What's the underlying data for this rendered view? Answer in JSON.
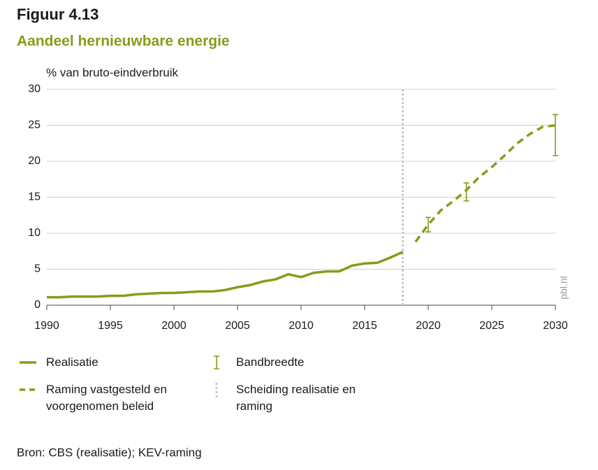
{
  "chart_data": {
    "type": "line",
    "title": "Figuur 4.13",
    "subtitle": "Aandeel hernieuwbare energie",
    "y_label": "% van  bruto-eindverbruik",
    "source": "Bron: CBS (realisatie); KEV-raming",
    "watermark": "pbl.nl",
    "x": [
      1990,
      1991,
      1992,
      1993,
      1994,
      1995,
      1996,
      1997,
      1998,
      1999,
      2000,
      2001,
      2002,
      2003,
      2004,
      2005,
      2006,
      2007,
      2008,
      2009,
      2010,
      2011,
      2012,
      2013,
      2014,
      2015,
      2016,
      2017,
      2018,
      2019,
      2020,
      2021,
      2022,
      2023,
      2024,
      2025,
      2026,
      2027,
      2028,
      2029,
      2030
    ],
    "series": [
      {
        "name": "Realisatie",
        "color": "#8a9a1b",
        "dashed": false,
        "values": [
          1.1,
          1.1,
          1.2,
          1.2,
          1.2,
          1.3,
          1.3,
          1.5,
          1.6,
          1.7,
          1.7,
          1.8,
          1.9,
          1.9,
          2.1,
          2.5,
          2.8,
          3.3,
          3.6,
          4.3,
          3.9,
          4.5,
          4.7,
          4.7,
          5.5,
          5.8,
          5.9,
          6.6,
          7.4,
          null,
          null,
          null,
          null,
          null,
          null,
          null,
          null,
          null,
          null,
          null,
          null
        ]
      },
      {
        "name": "Raming vastgesteld en voorgenomen beleid",
        "color": "#8a9a1b",
        "dashed": true,
        "values": [
          null,
          null,
          null,
          null,
          null,
          null,
          null,
          null,
          null,
          null,
          null,
          null,
          null,
          null,
          null,
          null,
          null,
          null,
          null,
          null,
          null,
          null,
          null,
          null,
          null,
          null,
          null,
          null,
          null,
          8.8,
          11.2,
          13.2,
          14.5,
          16.0,
          17.8,
          19.2,
          20.8,
          22.5,
          23.8,
          24.8,
          25.0
        ]
      }
    ],
    "error_bars": {
      "name": "Bandbreedte",
      "color": "#8a9a1b",
      "x": [
        2020,
        2023,
        2030
      ],
      "low": [
        10.2,
        14.5,
        20.8
      ],
      "high": [
        12.2,
        17.0,
        26.5
      ]
    },
    "separator": {
      "name": "Scheiding realisatie en raming",
      "x": 2018,
      "color": "#c8c8c8"
    },
    "xlim": [
      1990,
      2030
    ],
    "xticks": [
      1990,
      1995,
      2000,
      2005,
      2010,
      2015,
      2020,
      2025,
      2030
    ],
    "ylim": [
      0,
      30
    ],
    "yticks": [
      0,
      5,
      10,
      15,
      20,
      25,
      30
    ],
    "grid": true
  }
}
